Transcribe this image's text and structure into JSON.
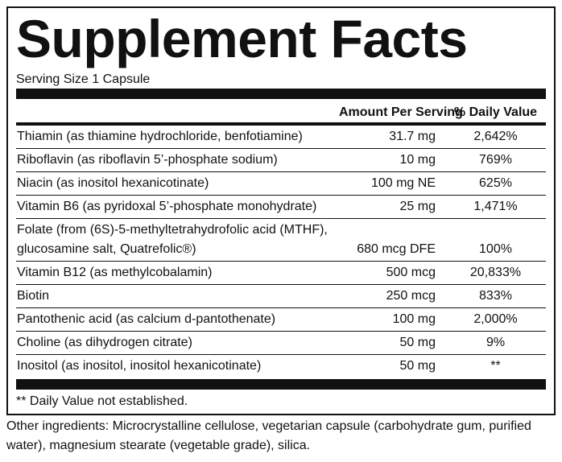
{
  "header": {
    "title": "Supplement Facts",
    "serving_size": "Serving Size 1 Capsule"
  },
  "table": {
    "columns": [
      "Amount Per Serving",
      "% Daily Value"
    ],
    "rows": [
      {
        "name": "Thiamin (as thiamine hydrochloride, benfotiamine)",
        "amount": "31.7 mg",
        "daily_value": "2,642%"
      },
      {
        "name": "Riboflavin (as riboflavin 5’-phosphate sodium)",
        "amount": "10 mg",
        "daily_value": "769%"
      },
      {
        "name": "Niacin (as inositol hexanicotinate)",
        "amount": "100 mg NE",
        "daily_value": "625%"
      },
      {
        "name": "Vitamin B6 (as pyridoxal 5’-phosphate monohydrate)",
        "amount": "25 mg",
        "daily_value": "1,471%"
      },
      {
        "name": "Folate (from (6S)-5-methyltetrahydrofolic acid (MTHF),\nglucosamine salt, Quatrefolic®)",
        "amount": "680 mcg DFE",
        "daily_value": "100%"
      },
      {
        "name": "Vitamin B12 (as methylcobalamin)",
        "amount": "500 mcg",
        "daily_value": "20,833%"
      },
      {
        "name": "Biotin",
        "amount": "250 mcg",
        "daily_value": "833%"
      },
      {
        "name": "Pantothenic acid (as calcium d-pantothenate)",
        "amount": "100 mg",
        "daily_value": "2,000%"
      },
      {
        "name": "Choline (as dihydrogen citrate)",
        "amount": "50 mg",
        "daily_value": "9%"
      },
      {
        "name": "Inositol (as inositol, inositol hexanicotinate)",
        "amount": "50 mg",
        "daily_value": "**"
      }
    ]
  },
  "footnote": "** Daily Value not established.",
  "other_ingredients": "Other ingredients: Microcrystalline cellulose, vegetarian capsule (carbohydrate gum, purified water), magnesium stearate (vegetable grade), silica."
}
